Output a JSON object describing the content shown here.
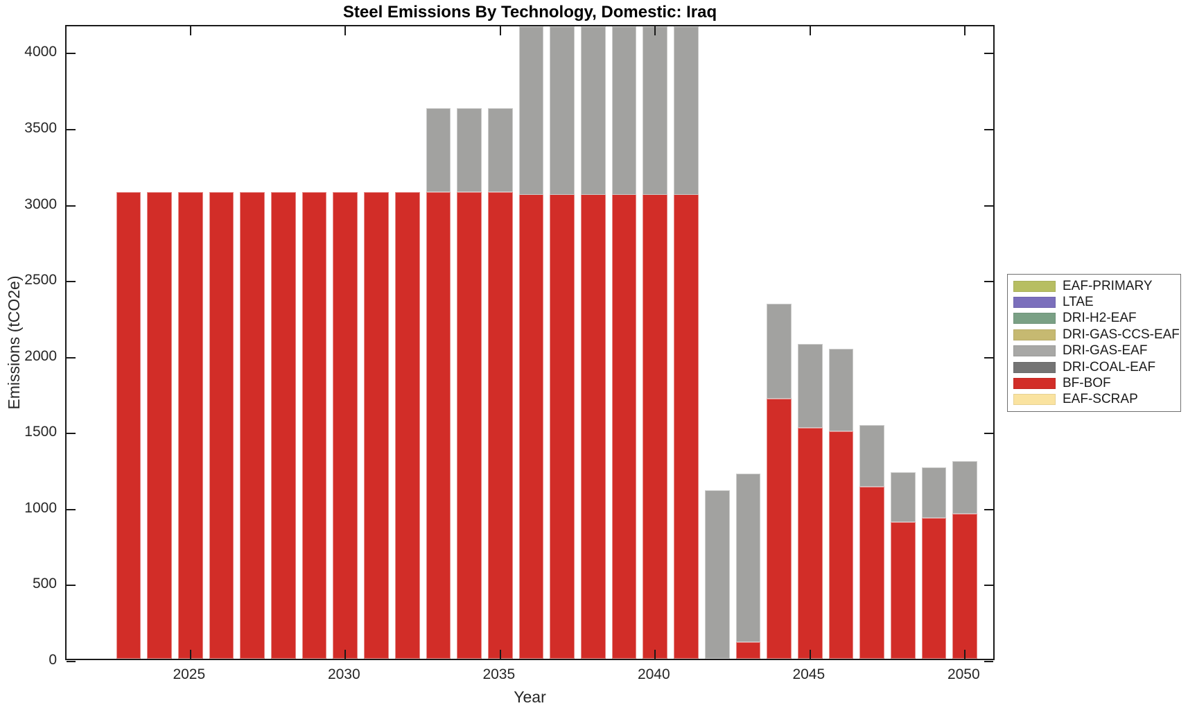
{
  "chart_data": {
    "type": "bar",
    "stacked": true,
    "title": "Steel Emissions By Technology, Domestic: Iraq",
    "xlabel": "Year",
    "ylabel": "Emissions (tCO2e)",
    "xlim": [
      2021,
      2051
    ],
    "ylim": [
      0,
      4180
    ],
    "xticks": [
      2025,
      2030,
      2035,
      2040,
      2045,
      2050
    ],
    "yticks": [
      0,
      500,
      1000,
      1500,
      2000,
      2500,
      3000,
      3500,
      4000
    ],
    "bar_width_years": 0.8,
    "grid": false,
    "legend_position": "right-outside",
    "categories": [
      2023,
      2024,
      2025,
      2026,
      2027,
      2028,
      2029,
      2030,
      2031,
      2032,
      2033,
      2034,
      2035,
      2036,
      2037,
      2038,
      2039,
      2040,
      2041,
      2042,
      2043,
      2044,
      2045,
      2046,
      2047,
      2048,
      2049,
      2050
    ],
    "series": [
      {
        "name": "BF-BOF",
        "color": "#d22d28",
        "values": [
          3070,
          3070,
          3070,
          3070,
          3070,
          3070,
          3070,
          3070,
          3070,
          3070,
          3070,
          3070,
          3070,
          3070,
          3070,
          3070,
          3070,
          3070,
          3070,
          0,
          110,
          1710,
          1520,
          1495,
          1130,
          900,
          925,
          955
        ]
      },
      {
        "name": "DRI-GAS-EAF",
        "color": "#a2a2a0",
        "values": [
          0,
          0,
          0,
          0,
          0,
          0,
          0,
          0,
          0,
          0,
          555,
          555,
          555,
          null,
          null,
          null,
          null,
          null,
          null,
          1110,
          1110,
          625,
          550,
          545,
          410,
          330,
          335,
          345
        ]
      }
    ],
    "clipped_years": [
      2036,
      2037,
      2038,
      2039,
      2040,
      2041
    ]
  },
  "legend": {
    "items": [
      {
        "label": "EAF-PRIMARY",
        "color": "#b7be62"
      },
      {
        "label": "LTAE",
        "color": "#7b6fbc"
      },
      {
        "label": "DRI-H2-EAF",
        "color": "#7aa085"
      },
      {
        "label": "DRI-GAS-CCS-EAF",
        "color": "#c6b971"
      },
      {
        "label": "DRI-GAS-EAF",
        "color": "#a8a8a6"
      },
      {
        "label": "DRI-COAL-EAF",
        "color": "#747474"
      },
      {
        "label": "BF-BOF",
        "color": "#d22d28"
      },
      {
        "label": "EAF-SCRAP",
        "color": "#fae3a0"
      }
    ]
  }
}
